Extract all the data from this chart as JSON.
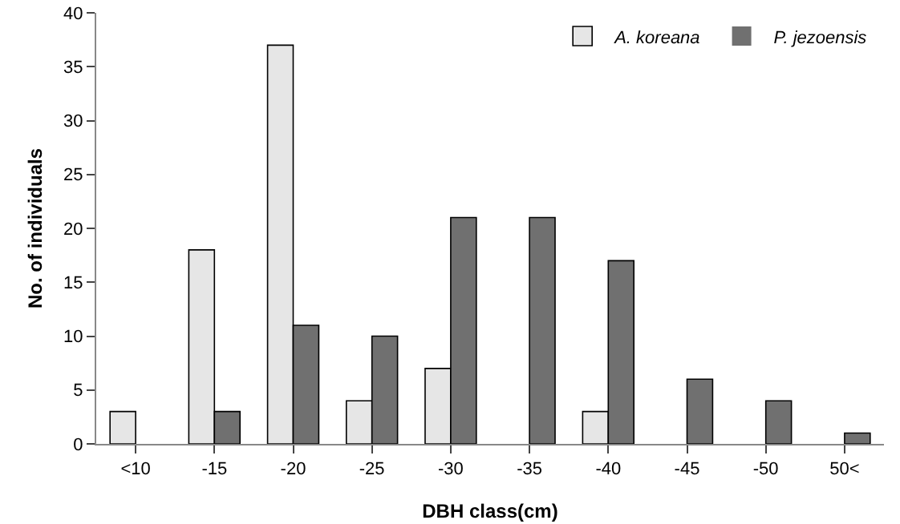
{
  "chart_data": {
    "type": "bar",
    "xlabel": "DBH class(cm)",
    "ylabel": "No. of individuals",
    "categories": [
      "<10",
      "-15",
      "-20",
      "-25",
      "-30",
      "-35",
      "-40",
      "-45",
      "-50",
      "50<"
    ],
    "series": [
      {
        "name": "A. koreana",
        "color": "#e6e6e6",
        "values": [
          3,
          18,
          37,
          4,
          7,
          0,
          3,
          0,
          0,
          0
        ]
      },
      {
        "name": "P. jezoensis",
        "color": "#707070",
        "values": [
          0,
          3,
          11,
          10,
          21,
          21,
          17,
          6,
          4,
          1
        ]
      }
    ],
    "ylim": [
      0,
      40
    ],
    "yticks": [
      0,
      5,
      10,
      15,
      20,
      25,
      30,
      35,
      40
    ],
    "grid": false,
    "legend": "top right"
  }
}
